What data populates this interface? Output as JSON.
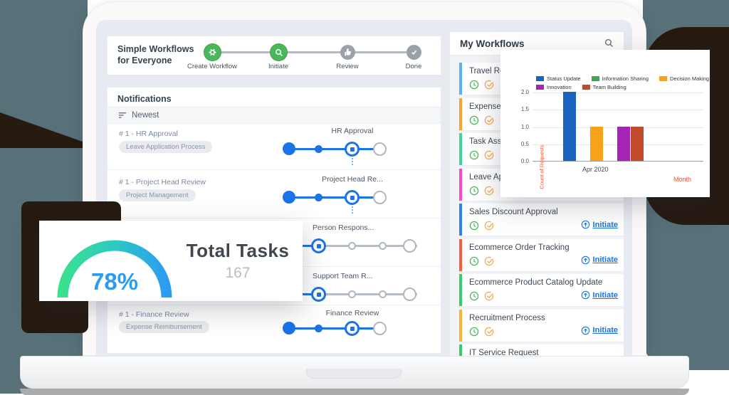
{
  "stepper": {
    "heading": "Simple Workflows for Everyone",
    "steps": [
      {
        "label": "Create Workflow",
        "state": "done",
        "icon": "gear-icon"
      },
      {
        "label": "Initiate",
        "state": "done",
        "icon": "search-icon"
      },
      {
        "label": "Review",
        "state": "pending",
        "icon": "thumbs-up-icon"
      },
      {
        "label": "Done",
        "state": "pending",
        "icon": "check-icon"
      }
    ]
  },
  "notifications": {
    "title": "Notifications",
    "sort_label": "Newest",
    "rows": [
      {
        "title": "# 1 - HR Approval",
        "tag": "Leave Application Process",
        "step_label": "HR Approval"
      },
      {
        "title": "# 1 - Project Head Review",
        "tag": "Project Management",
        "step_label": "Project Head Re..."
      },
      {
        "step_label": "Person Respons..."
      },
      {
        "step_label": "Support Team R..."
      },
      {
        "title": "# 1 - Finance Review",
        "tag": "Expense Reimbursement",
        "step_label": "Finance Review"
      }
    ]
  },
  "workflows": {
    "title": "My Workflows",
    "initiate_label": "Initiate",
    "items": [
      {
        "title": "Travel Requ",
        "accent": "#5ab1f7",
        "initiate": false
      },
      {
        "title": "Expense Re",
        "accent": "#f7a32d",
        "initiate": false
      },
      {
        "title": "Task Assign",
        "accent": "#3ed598",
        "initiate": false
      },
      {
        "title": "Leave Appli",
        "accent": "#ff49c7",
        "initiate": false
      },
      {
        "title": "Sales Discount Approval",
        "accent": "#2f80ed",
        "initiate": true
      },
      {
        "title": "Ecommerce Order Tracking",
        "accent": "#f75c3c",
        "initiate": true
      },
      {
        "title": "Ecommerce Product Catalog Update",
        "accent": "#2fd06f",
        "initiate": true
      },
      {
        "title": "Recruitment Process",
        "accent": "#f7b32d",
        "initiate": true
      },
      {
        "title": "IT Service Request",
        "accent": "#2fd06f",
        "initiate": false
      }
    ]
  },
  "tasks_card": {
    "title": "Total Tasks",
    "count": "167",
    "percent": "78%",
    "gauge_start_color": "#3be08f",
    "gauge_end_color": "#2d9cf0"
  },
  "chart_data": {
    "type": "bar",
    "categories": [
      "Apr 2020"
    ],
    "x_tick": "Apr 2020",
    "series": [
      {
        "name": "Status Update",
        "color": "#1b63c1",
        "values": [
          2
        ]
      },
      {
        "name": "Information Sharing",
        "color": "#3aa757",
        "values": [
          0
        ]
      },
      {
        "name": "Decision Making",
        "color": "#f9a11b",
        "values": [
          1
        ]
      },
      {
        "name": "Innovation",
        "color": "#a524b5",
        "values": [
          1
        ]
      },
      {
        "name": "Team Building",
        "color": "#c14a2b",
        "values": [
          1
        ]
      }
    ],
    "xlabel": "Month",
    "ylabel": "Count of Requests",
    "ylim": [
      0,
      2
    ],
    "yticks": [
      0.0,
      0.5,
      1.0,
      1.5,
      2.0
    ],
    "grid": true,
    "legend_position": "top"
  }
}
